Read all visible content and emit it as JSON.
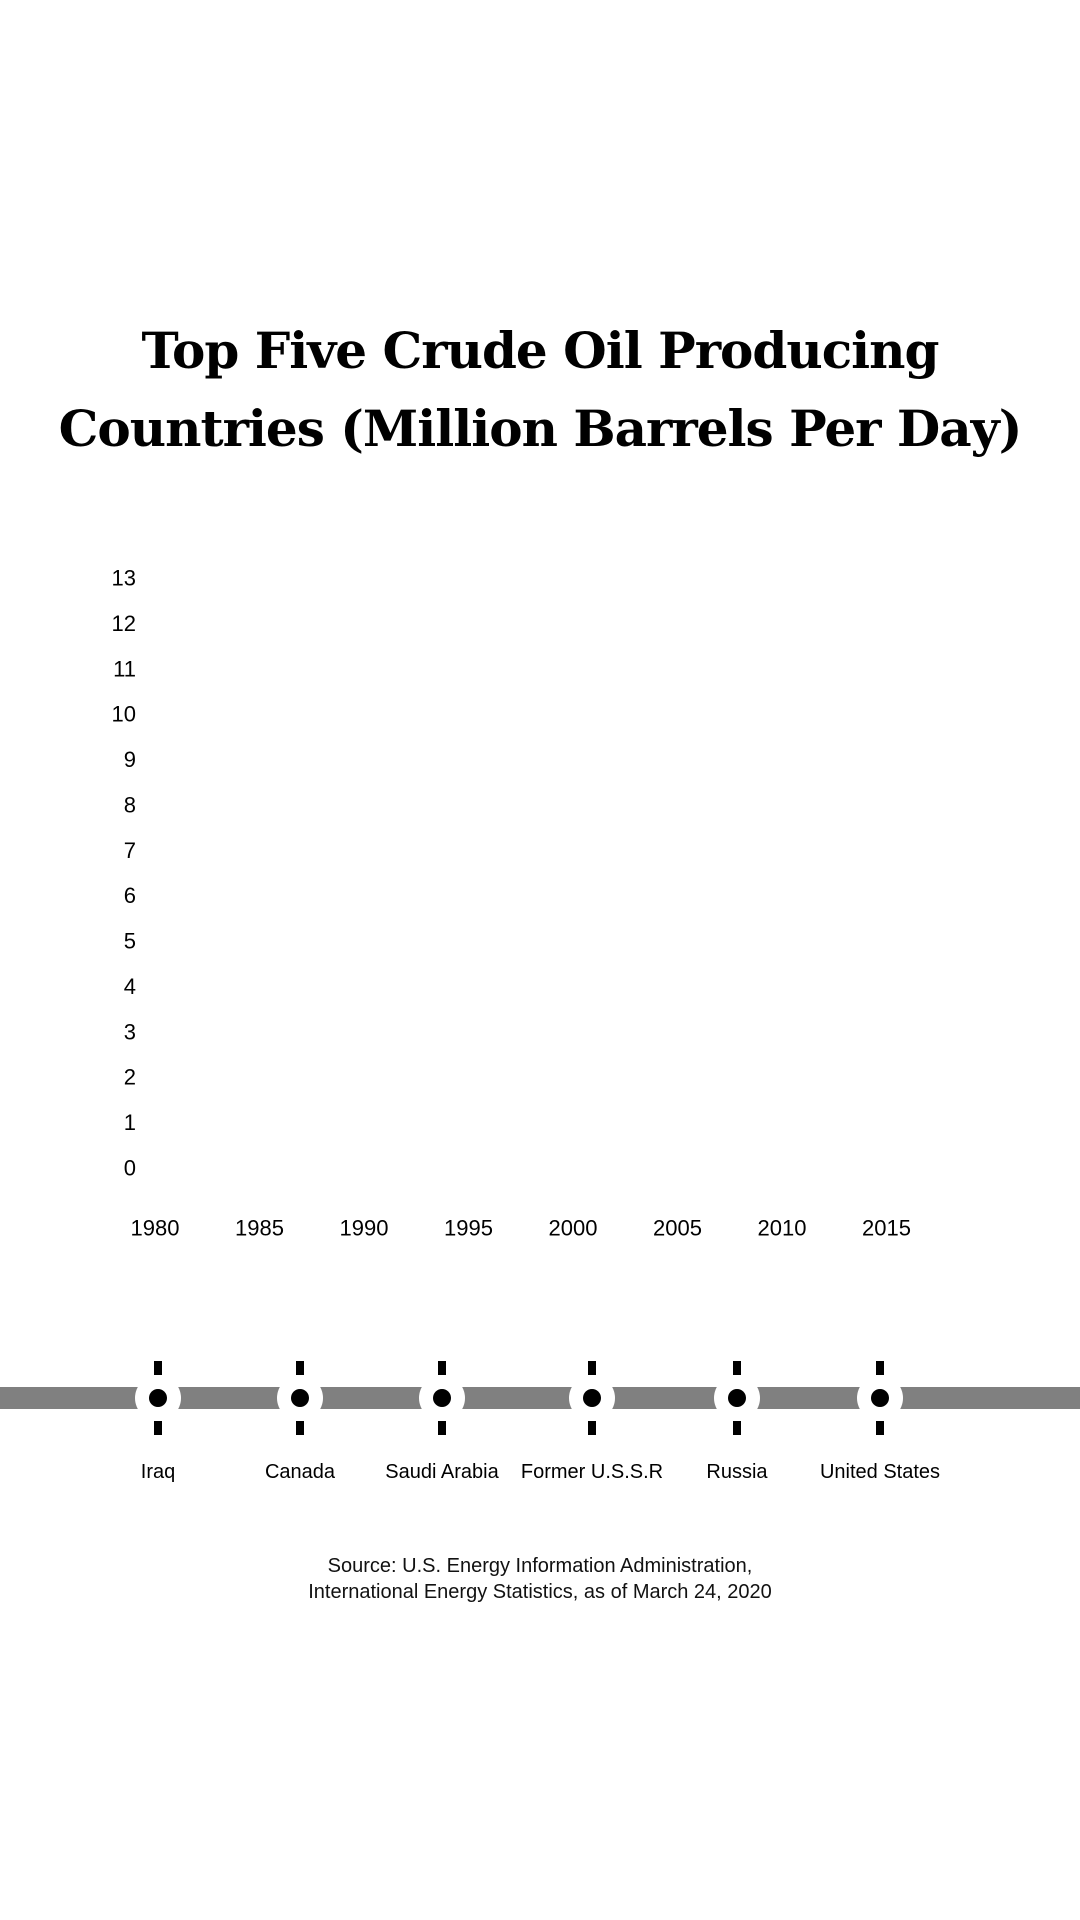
{
  "chart_data": {
    "type": "line",
    "title_lines": [
      "Top Five Crude Oil Producing",
      "Countries (Million Barrels Per Day)"
    ],
    "xlabel": "",
    "ylabel": "",
    "x_ticks": [
      "1980",
      "1985",
      "1990",
      "1995",
      "2000",
      "2005",
      "2010",
      "2015"
    ],
    "y_ticks": [
      "0",
      "1",
      "2",
      "3",
      "4",
      "5",
      "6",
      "7",
      "8",
      "9",
      "10",
      "11",
      "12",
      "13"
    ],
    "xlim": [
      1980,
      2015
    ],
    "ylim": [
      0,
      13
    ],
    "grid": false,
    "series": [],
    "legend": {
      "placement": "bottom",
      "entries": [
        "Iraq",
        "Canada",
        "Saudi Arabia",
        "Former U.S.S.R",
        "Russia",
        "United States"
      ]
    },
    "source_lines": [
      "Source: U.S. Energy Information Administration,",
      "International Energy Statistics, as of March 24, 2020"
    ]
  },
  "colors": {
    "legend_track": "#808080",
    "marker": "#000000",
    "background": "#ffffff"
  }
}
